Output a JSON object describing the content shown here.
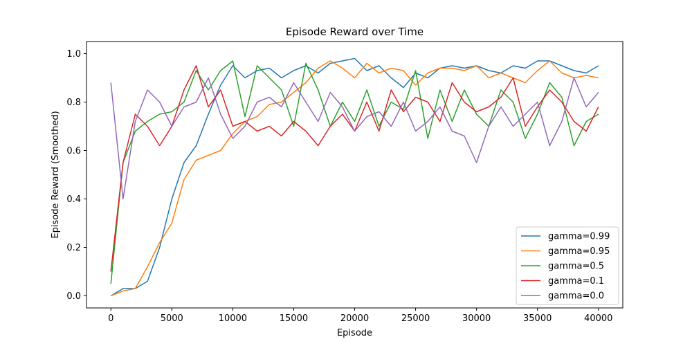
{
  "chart_data": {
    "type": "line",
    "title": "Episode Reward over Time",
    "xlabel": "Episode",
    "ylabel": "Episode Reward (Smoothed)",
    "xlim": [
      -2000,
      42000
    ],
    "ylim": [
      -0.05,
      1.05
    ],
    "xticks": [
      0,
      5000,
      10000,
      15000,
      20000,
      25000,
      30000,
      35000,
      40000
    ],
    "yticks": [
      0.0,
      0.2,
      0.4,
      0.6,
      0.8,
      1.0
    ],
    "xtick_labels": [
      "0",
      "5000",
      "10000",
      "15000",
      "20000",
      "25000",
      "30000",
      "35000",
      "40000"
    ],
    "ytick_labels": [
      "0.0",
      "0.2",
      "0.4",
      "0.6",
      "0.8",
      "1.0"
    ],
    "grid": false,
    "legend_position": "lower-right",
    "x": [
      0,
      1000,
      2000,
      3000,
      4000,
      5000,
      6000,
      7000,
      8000,
      9000,
      10000,
      11000,
      12000,
      13000,
      14000,
      15000,
      16000,
      17000,
      18000,
      19000,
      20000,
      21000,
      22000,
      23000,
      24000,
      25000,
      26000,
      27000,
      28000,
      29000,
      30000,
      31000,
      32000,
      33000,
      34000,
      35000,
      36000,
      37000,
      38000,
      39000,
      40000
    ],
    "series": [
      {
        "name": "gamma=0.99",
        "color": "#1f77b4",
        "values": [
          0.0,
          0.03,
          0.03,
          0.06,
          0.2,
          0.4,
          0.55,
          0.62,
          0.75,
          0.87,
          0.95,
          0.9,
          0.93,
          0.94,
          0.9,
          0.93,
          0.95,
          0.92,
          0.96,
          0.97,
          0.98,
          0.93,
          0.95,
          0.9,
          0.86,
          0.92,
          0.9,
          0.94,
          0.95,
          0.94,
          0.95,
          0.93,
          0.92,
          0.95,
          0.94,
          0.97,
          0.97,
          0.95,
          0.93,
          0.92,
          0.95
        ]
      },
      {
        "name": "gamma=0.95",
        "color": "#ff7f0e",
        "values": [
          0.0,
          0.02,
          0.03,
          0.12,
          0.22,
          0.3,
          0.48,
          0.56,
          0.58,
          0.6,
          0.67,
          0.72,
          0.74,
          0.79,
          0.8,
          0.84,
          0.88,
          0.94,
          0.97,
          0.94,
          0.9,
          0.96,
          0.92,
          0.94,
          0.93,
          0.87,
          0.92,
          0.94,
          0.94,
          0.93,
          0.95,
          0.9,
          0.92,
          0.9,
          0.88,
          0.93,
          0.97,
          0.92,
          0.9,
          0.91,
          0.9
        ]
      },
      {
        "name": "gamma=0.5",
        "color": "#2ca02c",
        "values": [
          0.05,
          0.55,
          0.68,
          0.72,
          0.75,
          0.76,
          0.8,
          0.93,
          0.85,
          0.93,
          0.97,
          0.74,
          0.95,
          0.9,
          0.85,
          0.7,
          0.96,
          0.85,
          0.7,
          0.8,
          0.72,
          0.85,
          0.7,
          0.8,
          0.77,
          0.93,
          0.65,
          0.85,
          0.72,
          0.85,
          0.75,
          0.7,
          0.85,
          0.8,
          0.65,
          0.75,
          0.88,
          0.82,
          0.62,
          0.72,
          0.75
        ]
      },
      {
        "name": "gamma=0.1",
        "color": "#d62728",
        "values": [
          0.1,
          0.55,
          0.75,
          0.7,
          0.62,
          0.7,
          0.85,
          0.95,
          0.78,
          0.85,
          0.7,
          0.72,
          0.68,
          0.7,
          0.66,
          0.72,
          0.68,
          0.62,
          0.7,
          0.75,
          0.68,
          0.8,
          0.68,
          0.85,
          0.76,
          0.82,
          0.8,
          0.72,
          0.88,
          0.8,
          0.76,
          0.78,
          0.82,
          0.9,
          0.7,
          0.78,
          0.85,
          0.8,
          0.72,
          0.68,
          0.78
        ]
      },
      {
        "name": "gamma=0.0",
        "color": "#9467bd",
        "values": [
          0.88,
          0.4,
          0.72,
          0.85,
          0.8,
          0.7,
          0.78,
          0.8,
          0.9,
          0.75,
          0.65,
          0.7,
          0.8,
          0.82,
          0.78,
          0.88,
          0.8,
          0.72,
          0.84,
          0.78,
          0.68,
          0.74,
          0.76,
          0.7,
          0.8,
          0.68,
          0.72,
          0.78,
          0.68,
          0.66,
          0.55,
          0.7,
          0.78,
          0.7,
          0.75,
          0.8,
          0.62,
          0.72,
          0.9,
          0.78,
          0.84
        ]
      }
    ]
  }
}
